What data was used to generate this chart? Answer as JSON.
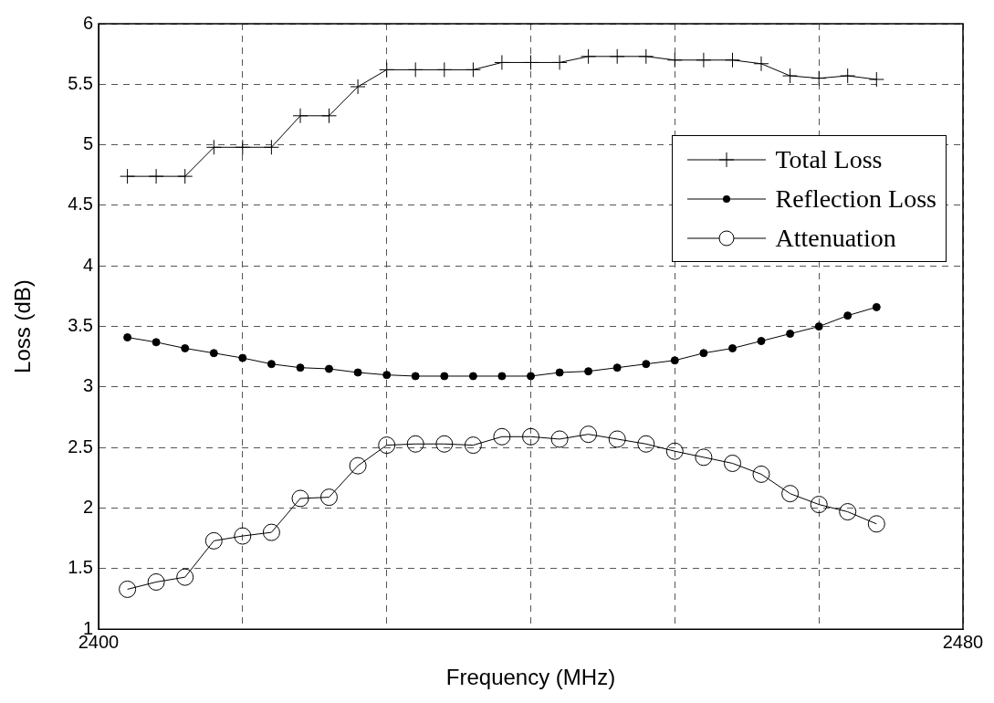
{
  "chart_data": {
    "type": "line",
    "xlabel": "Frequency (MHz)",
    "ylabel": "Loss (dB)",
    "x": [
      2402.67,
      2405.33,
      2408,
      2410.67,
      2413.33,
      2416,
      2418.67,
      2421.33,
      2424,
      2426.67,
      2429.33,
      2432,
      2434.67,
      2437.33,
      2440,
      2442.67,
      2445.33,
      2448,
      2450.67,
      2453.33,
      2456,
      2458.67,
      2461.33,
      2464,
      2466.67,
      2469.33,
      2472
    ],
    "xlim": [
      2400,
      2480
    ],
    "xticks": [
      2400,
      {
        "value": 2413.33,
        "label": null
      },
      {
        "value": 2426.67,
        "label": null
      },
      {
        "value": 2440,
        "label": null
      },
      {
        "value": 2453.33,
        "label": null
      },
      {
        "value": 2466.67,
        "label": null
      },
      2480
    ],
    "ylim": [
      1,
      6
    ],
    "yticks": [
      1,
      1.5,
      2,
      2.5,
      3,
      3.5,
      4,
      4.5,
      5,
      5.5,
      6
    ],
    "grid": true,
    "legend": "right",
    "line_style": "solid",
    "series": [
      {
        "name": "Total Loss",
        "color": "#000000",
        "marker": "cross",
        "values": [
          4.74,
          4.74,
          4.74,
          4.98,
          4.98,
          4.98,
          5.24,
          5.24,
          5.48,
          5.62,
          5.62,
          5.62,
          5.62,
          5.68,
          5.68,
          5.68,
          5.73,
          5.73,
          5.73,
          5.7,
          5.7,
          5.7,
          5.67,
          5.57,
          5.55,
          5.57,
          5.54
        ]
      },
      {
        "name": "Reflection Loss",
        "color": "#000000",
        "marker": "circle",
        "values": [
          3.41,
          3.37,
          3.32,
          3.28,
          3.24,
          3.19,
          3.16,
          3.15,
          3.12,
          3.1,
          3.09,
          3.09,
          3.09,
          3.09,
          3.09,
          3.12,
          3.13,
          3.16,
          3.19,
          3.22,
          3.28,
          3.32,
          3.38,
          3.44,
          3.5,
          3.59,
          3.66
        ]
      },
      {
        "name": "Attenuation",
        "color": "#000000",
        "marker": "circle",
        "values": [
          1.33,
          1.39,
          1.43,
          1.73,
          1.77,
          1.8,
          2.08,
          2.09,
          2.35,
          2.52,
          2.53,
          2.53,
          2.52,
          2.59,
          2.59,
          2.57,
          2.61,
          2.57,
          2.53,
          2.47,
          2.42,
          2.37,
          2.28,
          2.12,
          2.03,
          1.97,
          1.87
        ]
      }
    ]
  }
}
